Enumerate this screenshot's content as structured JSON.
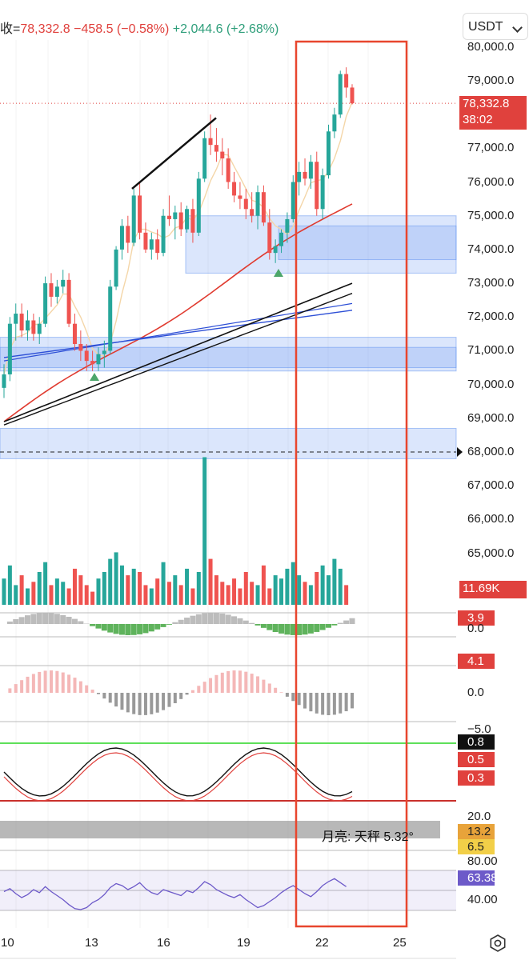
{
  "header": {
    "label": "收=",
    "close": "78,332.8",
    "change": "−458.5 (−0.58%)",
    "change2": "+2,044.6 (+2.68%)"
  },
  "unit_selector": {
    "value": "USDT"
  },
  "moon": "月亮:  天秤 5.32°",
  "colors": {
    "up": "#26a69a",
    "down": "#ef5350",
    "zone": "#5b8ff0",
    "ma_red": "#e03a2f",
    "ma_blue": "#2d4fd6",
    "highlight_box": "#e8462e"
  },
  "chart_data": {
    "type": "candlestick",
    "price_axis": {
      "labels": [
        "80,000.0",
        "79,000.0",
        "77,000.0",
        "76,000.0",
        "75,000.0",
        "74,000.0",
        "73,000.0",
        "72,000.0",
        "71,000.0",
        "70,000.0",
        "69,000.0",
        "68,000.0",
        "67,000.0",
        "66,000.0",
        "65,000.0"
      ],
      "range": [
        64500,
        80300
      ]
    },
    "x_axis": {
      "labels": [
        "10",
        "13",
        "16",
        "19",
        "22",
        "25"
      ]
    },
    "last_price": {
      "value": "78,332.8",
      "countdown": "38:02"
    },
    "dashed_level": 68000,
    "candles": [
      {
        "o": 69900,
        "h": 70600,
        "l": 69600,
        "c": 70300
      },
      {
        "o": 70300,
        "h": 72000,
        "l": 70100,
        "c": 71800
      },
      {
        "o": 71800,
        "h": 72400,
        "l": 71300,
        "c": 72100
      },
      {
        "o": 72100,
        "h": 72400,
        "l": 71400,
        "c": 71600
      },
      {
        "o": 71600,
        "h": 72200,
        "l": 71300,
        "c": 71900
      },
      {
        "o": 71900,
        "h": 72100,
        "l": 71300,
        "c": 71500
      },
      {
        "o": 71500,
        "h": 72000,
        "l": 71200,
        "c": 71800
      },
      {
        "o": 71800,
        "h": 73200,
        "l": 71700,
        "c": 73000
      },
      {
        "o": 73000,
        "h": 73300,
        "l": 72300,
        "c": 72600
      },
      {
        "o": 72600,
        "h": 73100,
        "l": 72400,
        "c": 72900
      },
      {
        "o": 72900,
        "h": 73400,
        "l": 72700,
        "c": 73100
      },
      {
        "o": 73100,
        "h": 73300,
        "l": 71700,
        "c": 71800
      },
      {
        "o": 71800,
        "h": 72100,
        "l": 71000,
        "c": 71200
      },
      {
        "o": 71200,
        "h": 71600,
        "l": 70700,
        "c": 71000
      },
      {
        "o": 71000,
        "h": 71200,
        "l": 70400,
        "c": 70700
      },
      {
        "o": 70700,
        "h": 71000,
        "l": 70400,
        "c": 70600
      },
      {
        "o": 70600,
        "h": 71100,
        "l": 70400,
        "c": 70900
      },
      {
        "o": 70900,
        "h": 71300,
        "l": 70500,
        "c": 71000
      },
      {
        "o": 71000,
        "h": 73100,
        "l": 70900,
        "c": 72900
      },
      {
        "o": 72900,
        "h": 74100,
        "l": 72800,
        "c": 74000
      },
      {
        "o": 74000,
        "h": 74900,
        "l": 73700,
        "c": 74700
      },
      {
        "o": 74700,
        "h": 75000,
        "l": 73900,
        "c": 74200
      },
      {
        "o": 74200,
        "h": 75800,
        "l": 74100,
        "c": 75600
      },
      {
        "o": 75600,
        "h": 76000,
        "l": 74300,
        "c": 74500
      },
      {
        "o": 74500,
        "h": 74800,
        "l": 73900,
        "c": 74000
      },
      {
        "o": 74000,
        "h": 74500,
        "l": 73700,
        "c": 74300
      },
      {
        "o": 74300,
        "h": 74600,
        "l": 73700,
        "c": 73900
      },
      {
        "o": 73900,
        "h": 75200,
        "l": 73800,
        "c": 75000
      },
      {
        "o": 75000,
        "h": 75600,
        "l": 74700,
        "c": 74900
      },
      {
        "o": 74900,
        "h": 75300,
        "l": 74300,
        "c": 75100
      },
      {
        "o": 75100,
        "h": 75400,
        "l": 74400,
        "c": 74600
      },
      {
        "o": 74600,
        "h": 75300,
        "l": 74500,
        "c": 75200
      },
      {
        "o": 75200,
        "h": 75500,
        "l": 74200,
        "c": 74500
      },
      {
        "o": 74500,
        "h": 76300,
        "l": 74400,
        "c": 76100
      },
      {
        "o": 76100,
        "h": 77500,
        "l": 76000,
        "c": 77300
      },
      {
        "o": 77300,
        "h": 78000,
        "l": 76800,
        "c": 77100
      },
      {
        "o": 77100,
        "h": 77600,
        "l": 76600,
        "c": 76900
      },
      {
        "o": 76900,
        "h": 77300,
        "l": 76200,
        "c": 76700
      },
      {
        "o": 76700,
        "h": 77000,
        "l": 75800,
        "c": 76000
      },
      {
        "o": 76000,
        "h": 76300,
        "l": 75400,
        "c": 75600
      },
      {
        "o": 75600,
        "h": 76000,
        "l": 75200,
        "c": 75500
      },
      {
        "o": 75500,
        "h": 75800,
        "l": 74900,
        "c": 75200
      },
      {
        "o": 75200,
        "h": 75700,
        "l": 74800,
        "c": 75000
      },
      {
        "o": 75000,
        "h": 75900,
        "l": 74600,
        "c": 75700
      },
      {
        "o": 75700,
        "h": 75900,
        "l": 74700,
        "c": 74800
      },
      {
        "o": 74800,
        "h": 75200,
        "l": 73700,
        "c": 73900
      },
      {
        "o": 73900,
        "h": 74300,
        "l": 73600,
        "c": 74100
      },
      {
        "o": 74100,
        "h": 74600,
        "l": 73900,
        "c": 74500
      },
      {
        "o": 74500,
        "h": 75100,
        "l": 74200,
        "c": 74900
      },
      {
        "o": 74900,
        "h": 76200,
        "l": 74800,
        "c": 76000
      },
      {
        "o": 76000,
        "h": 76600,
        "l": 75600,
        "c": 76300
      },
      {
        "o": 76300,
        "h": 76700,
        "l": 75900,
        "c": 76100
      },
      {
        "o": 76100,
        "h": 76800,
        "l": 75800,
        "c": 76600
      },
      {
        "o": 76600,
        "h": 76900,
        "l": 75000,
        "c": 75200
      },
      {
        "o": 75200,
        "h": 76400,
        "l": 74900,
        "c": 76200
      },
      {
        "o": 76200,
        "h": 77700,
        "l": 76100,
        "c": 77500
      },
      {
        "o": 77500,
        "h": 78200,
        "l": 77300,
        "c": 78000
      },
      {
        "o": 78000,
        "h": 79300,
        "l": 77900,
        "c": 79200
      },
      {
        "o": 79200,
        "h": 79400,
        "l": 78500,
        "c": 78800
      },
      {
        "o": 78800,
        "h": 78900,
        "l": 78300,
        "c": 78333
      }
    ],
    "volume": {
      "label": "11.69K"
    },
    "indicator_values": [
      "3.9",
      "0.0",
      "4.1",
      "0.0",
      "−5.0",
      "0.8",
      "0.5",
      "0.3",
      "20.0",
      "13.2",
      "6.5",
      "80.00",
      "63.38",
      "40.00"
    ],
    "rsi": [
      58,
      61,
      56,
      52,
      55,
      60,
      57,
      63,
      58,
      54,
      50,
      45,
      41,
      40,
      42,
      47,
      50,
      55,
      62,
      66,
      64,
      60,
      63,
      67,
      61,
      57,
      55,
      60,
      58,
      56,
      54,
      59,
      57,
      62,
      68,
      65,
      60,
      57,
      54,
      52,
      55,
      50,
      46,
      42,
      44,
      48,
      52,
      57,
      61,
      64,
      60,
      56,
      53,
      58,
      64,
      68,
      71,
      67,
      63
    ]
  }
}
